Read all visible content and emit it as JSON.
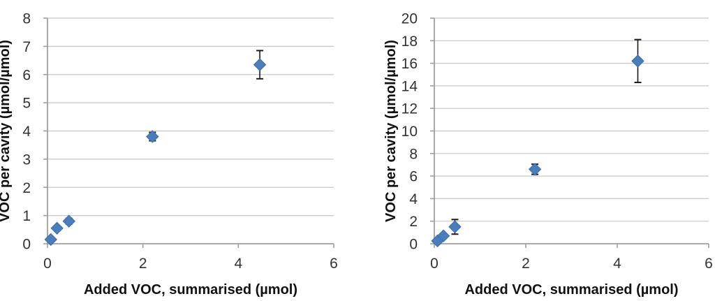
{
  "figure": {
    "background": "#ffffff",
    "marker_color": "#4a7ebb",
    "marker_border": "#3c6aa0",
    "error_bar_color": "#1a1a1a",
    "gridline_color": "#c8c8c8",
    "axis_color": "#9e9e9e",
    "tick_label_color": "#333333",
    "title_color": "#111111"
  },
  "chart_data": [
    {
      "type": "scatter",
      "title": "",
      "xlabel": "Added VOC, summarised (µmol)",
      "ylabel": "VOC per cavity (µmol/µmol)",
      "xlim": [
        0,
        6
      ],
      "ylim": [
        0,
        8
      ],
      "xticks": [
        0,
        2,
        4,
        6
      ],
      "yticks": [
        0,
        1,
        2,
        3,
        4,
        5,
        6,
        7,
        8
      ],
      "grid": "horizontal",
      "legend": "none",
      "series": [
        {
          "name": "VOC per cavity",
          "marker": "diamond",
          "points": [
            {
              "x": 0.07,
              "y": 0.15,
              "yerr": 0.05
            },
            {
              "x": 0.2,
              "y": 0.55,
              "yerr": 0.07
            },
            {
              "x": 0.45,
              "y": 0.8,
              "yerr": 0.1
            },
            {
              "x": 2.2,
              "y": 3.8,
              "yerr": 0.15
            },
            {
              "x": 4.45,
              "y": 6.35,
              "yerr": 0.5
            }
          ]
        }
      ]
    },
    {
      "type": "scatter",
      "title": "",
      "xlabel": "Added VOC, summarised (µmol)",
      "ylabel": "VOC per cavity (µmol/µmol)",
      "xlim": [
        0,
        6
      ],
      "ylim": [
        0,
        20
      ],
      "xticks": [
        0,
        2,
        4,
        6
      ],
      "yticks": [
        0,
        2,
        4,
        6,
        8,
        10,
        12,
        14,
        16,
        18,
        20
      ],
      "grid": "horizontal",
      "legend": "none",
      "series": [
        {
          "name": "VOC per cavity",
          "marker": "diamond",
          "points": [
            {
              "x": 0.07,
              "y": 0.25,
              "yerr": 0.1
            },
            {
              "x": 0.2,
              "y": 0.7,
              "yerr": 0.15
            },
            {
              "x": 0.45,
              "y": 1.5,
              "yerr": 0.65
            },
            {
              "x": 2.2,
              "y": 6.6,
              "yerr": 0.45
            },
            {
              "x": 4.45,
              "y": 16.2,
              "yerr": 1.9
            }
          ]
        }
      ]
    }
  ]
}
